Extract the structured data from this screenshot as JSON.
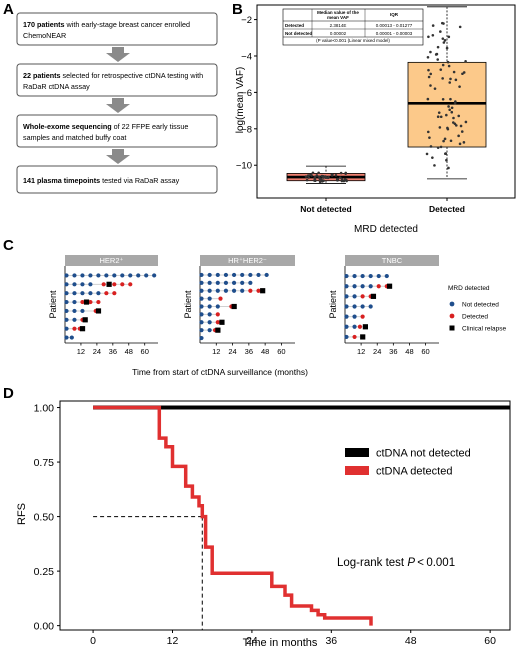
{
  "panel_labels": {
    "a": "A",
    "b": "B",
    "c": "C",
    "d": "D"
  },
  "flow": {
    "boxes": [
      {
        "bold": "170 patients",
        "rest": " with early-stage breast cancer enrolled",
        "line2": "ChemoNEAR"
      },
      {
        "bold": "22 patients",
        "rest": " selected for retrospective ctDNA testing with",
        "line2": "RaDaR ctDNA assay"
      },
      {
        "bold": "Whole-exome sequencing",
        "rest": " of 22 FFPE early tissue",
        "line2": "samples and matched buffy coat"
      },
      {
        "bold": "141 plasma timepoints",
        "rest": " tested via RaDaR assay",
        "line2": ""
      }
    ]
  },
  "chart_data": [
    {
      "type": "box",
      "title": "",
      "xlabel": "MRD detected",
      "ylabel": "log(mean VAF)",
      "categories": [
        "Not detected",
        "Detected"
      ],
      "ylim": [
        -11.8,
        -1.2
      ],
      "yticks": [
        -10,
        -8,
        -6,
        -4,
        -2
      ],
      "boxes": [
        {
          "name": "Not detected",
          "whisker_low": -11.0,
          "q1": -10.85,
          "median": -10.65,
          "q3": -10.45,
          "whisker_high": -10.05,
          "fill": "#f08070"
        },
        {
          "name": "Detected",
          "whisker_low": -10.75,
          "q1": -9.0,
          "median": -6.6,
          "q3": -4.35,
          "whisker_high": -1.3,
          "fill": "#fcc98a"
        }
      ],
      "inset_table": {
        "headers": [
          "",
          "Median value of the mean VAF",
          "IQR"
        ],
        "rows": [
          [
            "Detected",
            "2.3814E",
            "0.00013 - 0.01277"
          ],
          [
            "Not detected",
            "0.00002",
            "0.00001 - 0.00003"
          ]
        ],
        "footnote": "(P value<0.001 (Linear mixed model)"
      }
    },
    {
      "type": "swimmer",
      "xlabel": "Time from start of ctDNA surveillance (months)",
      "ylabel": "Patient",
      "xticks": [
        12,
        24,
        36,
        48,
        60
      ],
      "facets": [
        {
          "title": "HER2⁺",
          "rows": [
            {
              "b": [
                0,
                6,
                12,
                18,
                24,
                30,
                36,
                42,
                48,
                54,
                60,
                66
              ],
              "r": [],
              "x": []
            },
            {
              "b": [
                0,
                6,
                12,
                18
              ],
              "r": [
                28,
                36,
                42,
                48
              ],
              "x": [
                32
              ]
            },
            {
              "b": [
                0,
                6,
                12,
                18,
                24
              ],
              "r": [
                30,
                36
              ],
              "x": []
            },
            {
              "b": [
                0,
                6
              ],
              "r": [
                12,
                18,
                24
              ],
              "x": [
                15
              ]
            },
            {
              "b": [
                0,
                6,
                12
              ],
              "r": [
                22
              ],
              "x": [
                24
              ]
            },
            {
              "b": [
                0,
                6
              ],
              "r": [
                12
              ],
              "x": [
                14
              ]
            },
            {
              "b": [
                0
              ],
              "r": [
                6,
                10
              ],
              "x": [
                12
              ]
            },
            {
              "b": [
                0,
                4
              ],
              "r": [],
              "x": []
            }
          ]
        },
        {
          "title": "HR⁺HER2⁻",
          "rows": [
            {
              "b": [
                0,
                6,
                12,
                18,
                24,
                30,
                36,
                42,
                48
              ],
              "r": [],
              "x": []
            },
            {
              "b": [
                0,
                6,
                12,
                18,
                24,
                30,
                36
              ],
              "r": [],
              "x": []
            },
            {
              "b": [
                0,
                6,
                12,
                18,
                24,
                30
              ],
              "r": [
                36,
                42
              ],
              "x": [
                45
              ]
            },
            {
              "b": [
                0,
                6
              ],
              "r": [
                14
              ],
              "x": []
            },
            {
              "b": [
                0,
                6,
                12
              ],
              "r": [
                22
              ],
              "x": [
                24
              ]
            },
            {
              "b": [
                0,
                6
              ],
              "r": [
                12
              ],
              "x": []
            },
            {
              "b": [
                0,
                6
              ],
              "r": [
                12
              ],
              "x": [
                15
              ]
            },
            {
              "b": [
                0,
                6
              ],
              "r": [
                10
              ],
              "x": [
                12
              ]
            },
            {
              "b": [
                0
              ],
              "r": [],
              "x": []
            }
          ]
        },
        {
          "title": "TNBC",
          "rows": [
            {
              "b": [
                0,
                6,
                12,
                18,
                24,
                30
              ],
              "r": [],
              "x": []
            },
            {
              "b": [
                0,
                6,
                12,
                18
              ],
              "r": [
                24,
                30
              ],
              "x": [
                32
              ]
            },
            {
              "b": [
                0,
                6
              ],
              "r": [
                12,
                18
              ],
              "x": [
                20
              ]
            },
            {
              "b": [
                0,
                6,
                12,
                18
              ],
              "r": [],
              "x": []
            },
            {
              "b": [
                0,
                6
              ],
              "r": [
                12
              ],
              "x": []
            },
            {
              "b": [
                0,
                6
              ],
              "r": [
                10
              ],
              "x": [
                14
              ]
            },
            {
              "b": [
                0
              ],
              "r": [
                6
              ],
              "x": [
                12
              ]
            }
          ]
        }
      ],
      "legend": {
        "title": "MRD detected",
        "items": [
          "Not detected",
          "Detected",
          "Clinical relapse"
        ]
      }
    },
    {
      "type": "line",
      "xlabel": "Time in months",
      "ylabel": "RFS",
      "xlim": [
        -5,
        63
      ],
      "ylim": [
        -0.02,
        1.03
      ],
      "xticks": [
        0,
        12,
        24,
        36,
        48,
        60
      ],
      "yticks": [
        0.0,
        0.25,
        0.5,
        0.75,
        1.0
      ],
      "ytick_labels": [
        "0.00",
        "0.25",
        "0.50",
        "0.75",
        "1.00"
      ],
      "series": [
        {
          "name": "ctDNA not detected",
          "color": "#000000",
          "x": [
            0,
            63
          ],
          "y": [
            1.0,
            1.0
          ]
        },
        {
          "name": "ctDNA detected",
          "color": "#e03030",
          "x": [
            0,
            10,
            10,
            11,
            11,
            12,
            12,
            14,
            14,
            15,
            15,
            16,
            16,
            16.5,
            16.5,
            17,
            17,
            18,
            18,
            27,
            27,
            29,
            29,
            30,
            30,
            33,
            33,
            34,
            34,
            35,
            35,
            42,
            42
          ],
          "y": [
            1.0,
            1.0,
            0.86,
            0.86,
            0.82,
            0.82,
            0.73,
            0.73,
            0.64,
            0.64,
            0.59,
            0.59,
            0.55,
            0.55,
            0.5,
            0.5,
            0.36,
            0.36,
            0.24,
            0.24,
            0.18,
            0.18,
            0.14,
            0.14,
            0.09,
            0.09,
            0.07,
            0.07,
            0.05,
            0.05,
            0.035,
            0.035,
            0.0
          ]
        }
      ],
      "median_reference": {
        "x": 16.5,
        "y": 0.5
      },
      "annotation": {
        "prefix": "Log-rank test ",
        "italic": "P",
        "suffix": " < 0.001"
      }
    }
  ]
}
